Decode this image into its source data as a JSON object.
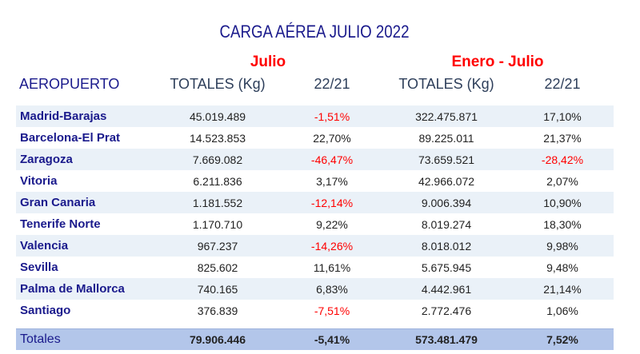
{
  "title": "CARGA AÉREA JULIO 2022",
  "periods": {
    "julio": "Julio",
    "enero_julio": "Enero - Julio"
  },
  "headers": {
    "airport": "AEROPUERTO",
    "totals1": "TOTALES (Kg)",
    "var1": "22/21",
    "totals2": "TOTALES (Kg)",
    "var2": "22/21"
  },
  "rows": [
    {
      "name": "Madrid-Barajas",
      "jul": "45.019.489",
      "jul_var": "-1,51%",
      "ytd": "322.475.871",
      "ytd_var": "17,10%"
    },
    {
      "name": "Barcelona-El Prat",
      "jul": "14.523.853",
      "jul_var": "22,70%",
      "ytd": "89.225.011",
      "ytd_var": "21,37%"
    },
    {
      "name": "Zaragoza",
      "jul": "7.669.082",
      "jul_var": "-46,47%",
      "ytd": "73.659.521",
      "ytd_var": "-28,42%"
    },
    {
      "name": "Vitoria",
      "jul": "6.211.836",
      "jul_var": "3,17%",
      "ytd": "42.966.072",
      "ytd_var": "2,07%"
    },
    {
      "name": "Gran Canaria",
      "jul": "1.181.552",
      "jul_var": "-12,14%",
      "ytd": "9.006.394",
      "ytd_var": "10,90%"
    },
    {
      "name": "Tenerife Norte",
      "jul": "1.170.710",
      "jul_var": "9,22%",
      "ytd": "8.019.274",
      "ytd_var": "18,30%"
    },
    {
      "name": "Valencia",
      "jul": "967.237",
      "jul_var": "-14,26%",
      "ytd": "8.018.012",
      "ytd_var": "9,98%"
    },
    {
      "name": "Sevilla",
      "jul": "825.602",
      "jul_var": "11,61%",
      "ytd": "5.675.945",
      "ytd_var": "9,48%"
    },
    {
      "name": "Palma de Mallorca",
      "jul": "740.165",
      "jul_var": "6,83%",
      "ytd": "4.442.961",
      "ytd_var": "21,14%"
    },
    {
      "name": "Santiago",
      "jul": "376.839",
      "jul_var": "-7,51%",
      "ytd": "2.772.476",
      "ytd_var": "1,06%"
    }
  ],
  "totals": {
    "name": "Totales",
    "jul": "79.906.446",
    "jul_var": "-5,41%",
    "ytd": "573.481.479",
    "ytd_var": "7,52%"
  },
  "colors": {
    "negative": "#ff0000",
    "airport_text": "#1a1a8c",
    "stripe": "#eaf1f8",
    "totals_bg": "#b3c6ea"
  }
}
